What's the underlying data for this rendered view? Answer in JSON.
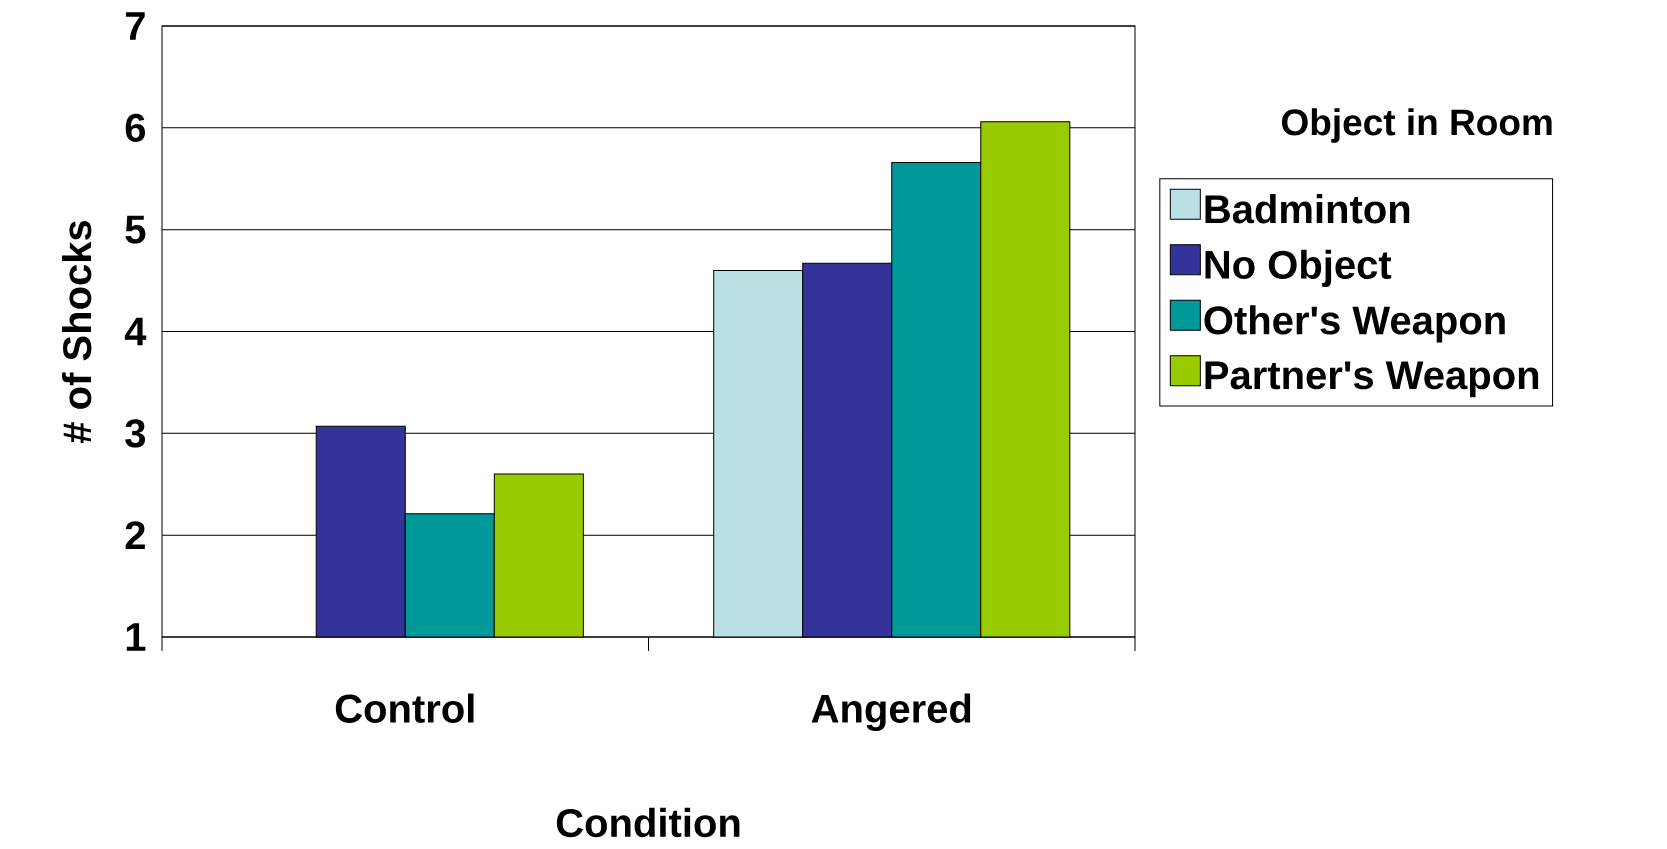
{
  "chart_data": {
    "type": "bar",
    "xlabel": "Condition",
    "ylabel": "# of Shocks",
    "legend_title": "Object in Room",
    "categories": [
      "Control",
      "Angered"
    ],
    "series": [
      {
        "name": "Badminton",
        "color": "#bbe0e3",
        "values": [
          null,
          4.6
        ]
      },
      {
        "name": "No Object",
        "color": "#333399",
        "values": [
          3.07,
          4.67
        ]
      },
      {
        "name": "Other's Weapon",
        "color": "#009999",
        "values": [
          2.21,
          5.66
        ]
      },
      {
        "name": "Partner's Weapon",
        "color": "#99cc00",
        "values": [
          2.6,
          6.06
        ]
      }
    ],
    "ylim": [
      1,
      7
    ],
    "yticks": [
      1,
      2,
      3,
      4,
      5,
      6,
      7
    ],
    "grid": "y",
    "legend": "right"
  }
}
